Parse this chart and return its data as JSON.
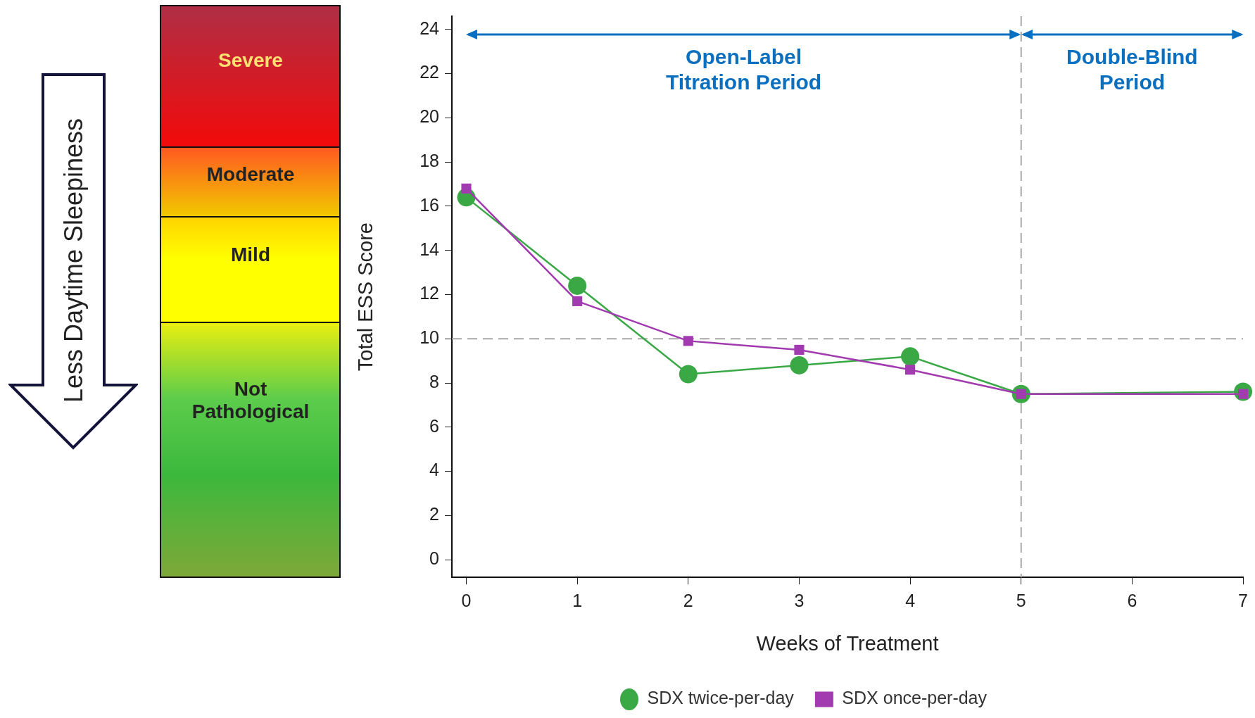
{
  "chart_data": {
    "type": "line",
    "xlabel": "Weeks of Treatment",
    "ylabel": "Total ESS Score",
    "x": [
      0,
      1,
      2,
      3,
      4,
      5,
      7
    ],
    "series": [
      {
        "name": "SDX twice-per-day",
        "color": "#3aa845",
        "marker": "circle",
        "values": [
          16.4,
          12.4,
          8.4,
          8.8,
          9.2,
          7.5,
          7.6
        ]
      },
      {
        "name": "SDX once-per-day",
        "color": "#a23ab0",
        "marker": "square",
        "values": [
          16.8,
          11.7,
          9.9,
          9.5,
          8.6,
          7.5,
          7.5
        ]
      }
    ],
    "xlim": [
      -0.13,
      7
    ],
    "xticks": [
      0,
      1,
      2,
      3,
      4,
      5,
      6,
      7
    ],
    "ylim": [
      -0.8,
      24.6
    ],
    "yticks": [
      0,
      2,
      4,
      6,
      8,
      10,
      12,
      14,
      16,
      18,
      20,
      22,
      24
    ],
    "grid": false,
    "legend": "bottom",
    "line_style": "solid",
    "ref_lines": [
      {
        "axis": "y",
        "value": 10,
        "color": "#a8a8a8",
        "line_style": "dashed"
      },
      {
        "axis": "x",
        "value": 5,
        "color": "#a8a8a8",
        "line_style": "dashed"
      }
    ],
    "annotations": [
      "Severe",
      "Moderate",
      "Mild",
      "Not Pathological",
      "Less Daytime Sleepiness",
      "Open-Label Titration Period",
      "Double-Blind Period"
    ]
  }
}
